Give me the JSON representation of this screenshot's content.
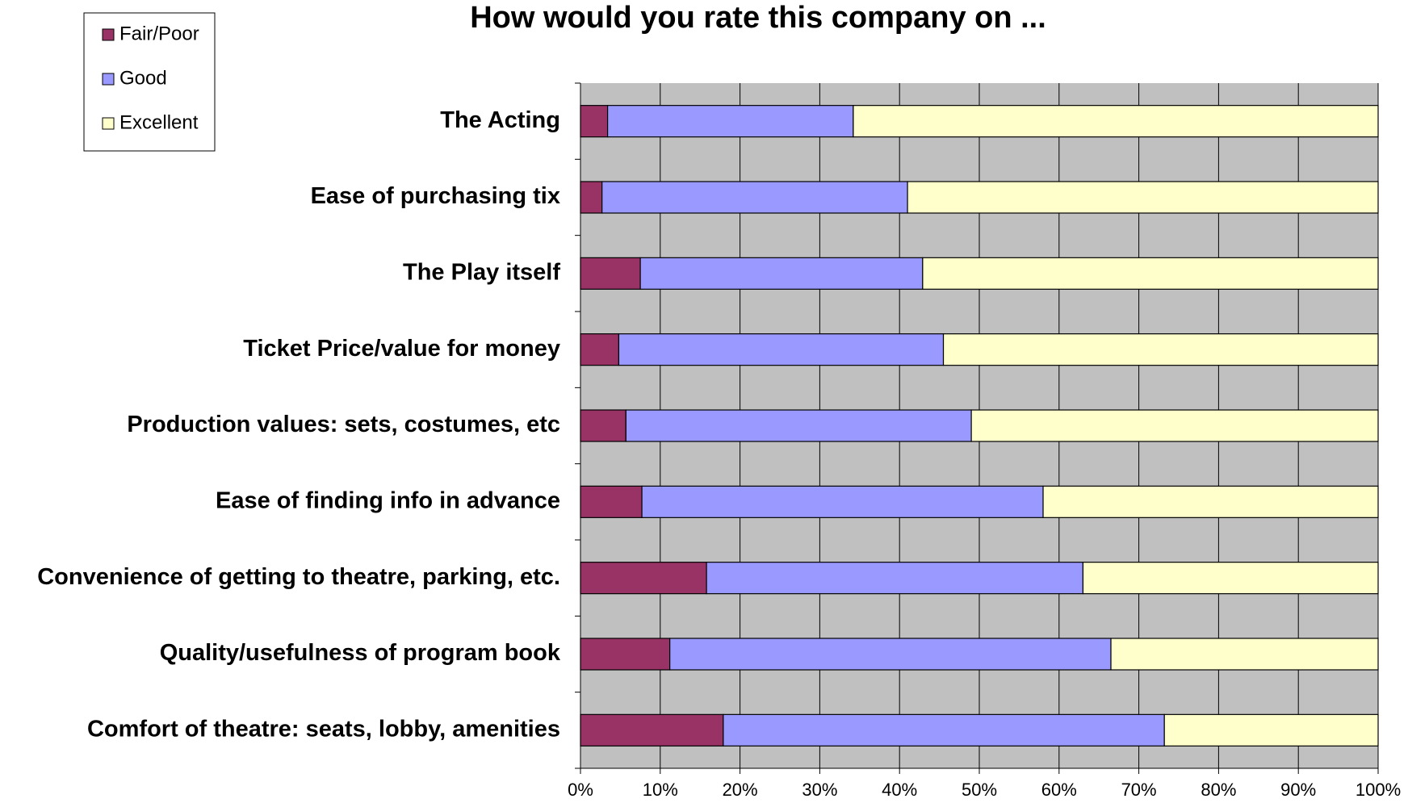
{
  "chart_data": {
    "type": "stacked_barh",
    "title": "How would you rate this company on ...",
    "categories": [
      "The Acting",
      "Ease of purchasing tix",
      "The Play itself",
      "Ticket Price/value for money",
      "Production values: sets, costumes, etc",
      "Ease of finding info in advance",
      "Convenience of getting to theatre, parking, etc.",
      "Quality/usefulness of program book",
      "Comfort of theatre: seats, lobby, amenities"
    ],
    "series": [
      {
        "name": "Fair/Poor",
        "color": "#993366",
        "values": [
          3.4,
          2.7,
          7.5,
          4.8,
          5.7,
          7.7,
          15.8,
          11.2,
          17.9
        ]
      },
      {
        "name": "Good",
        "color": "#9999ff",
        "values": [
          30.8,
          38.3,
          35.4,
          40.7,
          43.3,
          50.3,
          47.2,
          55.3,
          55.3
        ]
      },
      {
        "name": "Excellent",
        "color": "#ffffcc",
        "values": [
          65.8,
          59.0,
          57.1,
          54.5,
          51.0,
          42.0,
          37.0,
          33.5,
          26.8
        ]
      }
    ],
    "xlim": [
      0,
      100
    ],
    "xticks": [
      {
        "value": 0,
        "label": "0%"
      },
      {
        "value": 10,
        "label": "10%"
      },
      {
        "value": 20,
        "label": "20%"
      },
      {
        "value": 30,
        "label": "30%"
      },
      {
        "value": 40,
        "label": "40%"
      },
      {
        "value": 50,
        "label": "50%"
      },
      {
        "value": 60,
        "label": "60%"
      },
      {
        "value": 70,
        "label": "70%"
      },
      {
        "value": 80,
        "label": "80%"
      },
      {
        "value": 90,
        "label": "90%"
      },
      {
        "value": 100,
        "label": "100%"
      }
    ],
    "grid": true,
    "legend": "upper left"
  }
}
